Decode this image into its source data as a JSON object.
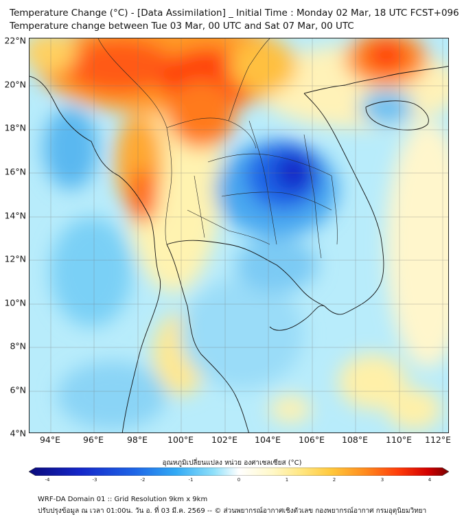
{
  "title_line1": "Temperature Change (°C) - [Data Assimilation] _ Initial Time : Monday 02 Mar, 18 UTC FCST+096",
  "title_line2": "Temperature change between Tue 03 Mar, 00 UTC and Sat 07 Mar, 00 UTC",
  "lat_labels": [
    "22°N",
    "20°N",
    "18°N",
    "16°N",
    "14°N",
    "12°N",
    "10°N",
    "8°N",
    "6°N",
    "4°N"
  ],
  "lon_labels": [
    "94°E",
    "96°E",
    "98°E",
    "100°E",
    "102°E",
    "104°E",
    "106°E",
    "108°E",
    "110°E",
    "112°E"
  ],
  "colorbar": {
    "title": "อุณหภูมิเปลี่ยนแปลง หน่วย องศาเซลเซียส (°C)",
    "tick_labels": [
      "-4",
      "-3",
      "-2",
      "-1",
      "0",
      "1",
      "2",
      "3",
      "4"
    ],
    "range": [
      -4,
      4
    ],
    "colors": [
      "#0a0a7a",
      "#1426c8",
      "#1e64e6",
      "#32aaf5",
      "#8fe0fa",
      "#dff5fa",
      "#ffffff",
      "#fff8c8",
      "#ffe680",
      "#ffc83c",
      "#ff8c1e",
      "#ff3c0a",
      "#d20000",
      "#780000"
    ]
  },
  "footer_line1": "WRF-DA Domain 01 :: Grid Resolution 9km x 9km",
  "footer_line2": "ปรับปรุงข้อมูล ณ เวลา 01:00น. วัน อ. ที่ 03 มี.ค. 2569 -- © ส่วนพยากรณ์อากาศเชิงตัวเลข กองพยากรณ์อากาศ กรมอุตุนิยมวิทยา"
}
